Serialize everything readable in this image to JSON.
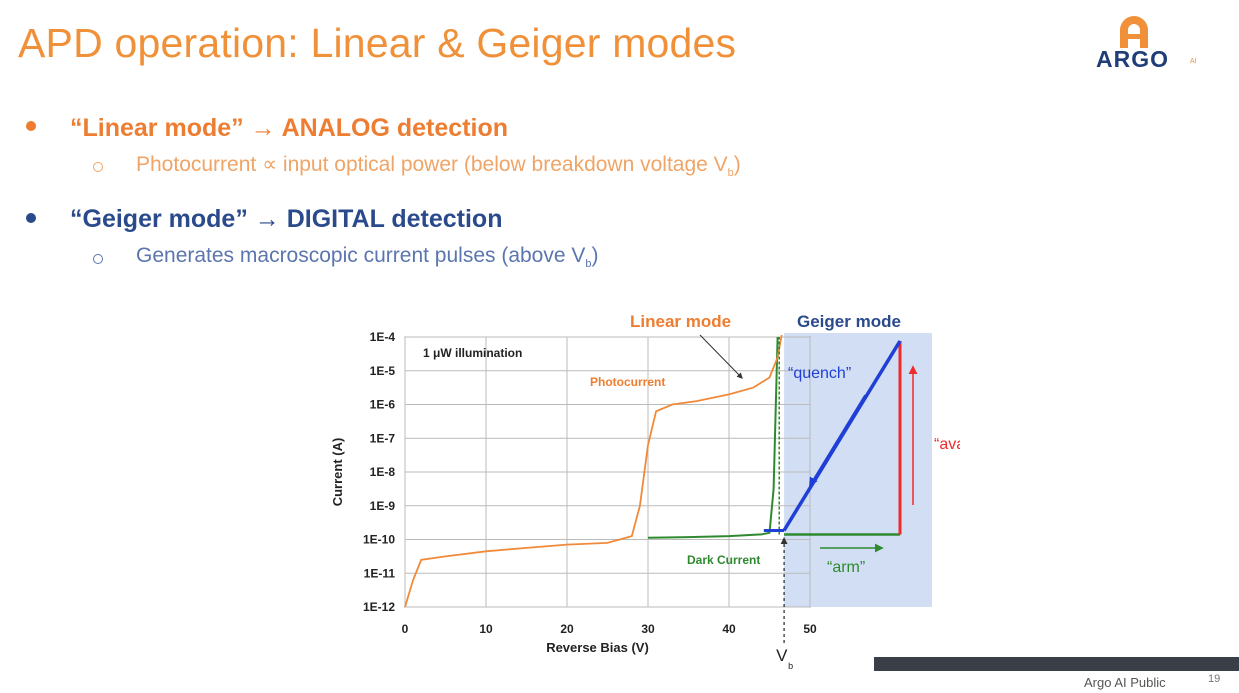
{
  "slide": {
    "title": "APD operation:  Linear & Geiger modes",
    "logo_text": "ARGO",
    "logo_sup": "AI",
    "bullet1": "“Linear mode” → ANALOG detection",
    "sub1_text": "Photocurrent ∝ input optical power (below breakdown voltage V",
    "sub1_sub": "b",
    "sub1_end": ")",
    "bullet2": "“Geiger mode” → DIGITAL detection",
    "sub2_text": "Generates macroscopic current pulses (above V",
    "sub2_sub": "b",
    "sub2_end": ")",
    "footer": "Argo AI Public",
    "page_number": "19"
  },
  "colors": {
    "accent_orange": "#ed7d31",
    "accent_blue": "#2a4a8c",
    "geiger_region": "#c9d8f1",
    "geiger_line": "#1f3fd6",
    "avalanche": "#f02a2a",
    "dark_current": "#2f8a2f",
    "photocurrent": "#f08a3a"
  },
  "chart_data": {
    "type": "line",
    "ylabel": "Current (A)",
    "xlabel": "Reverse Bias (V)",
    "x_ticks": [
      0,
      10,
      20,
      30,
      40,
      50
    ],
    "y_ticks": [
      "1E-12",
      "1E-11",
      "1E-10",
      "1E-9",
      "1E-8",
      "1E-7",
      "1E-6",
      "1E-5",
      "1E-4"
    ],
    "xlim": [
      0,
      50
    ],
    "ylim_log10": [
      -12,
      -4
    ],
    "y_scale": "log",
    "grid": true,
    "inset_label": "1 μW illumination",
    "series": [
      {
        "name": "Photocurrent",
        "x": [
          0,
          1,
          1.5,
          2,
          5,
          10,
          15,
          20,
          25,
          28,
          29,
          30,
          31,
          33,
          36,
          40,
          43,
          45,
          46,
          46.5
        ],
        "log10_y": [
          -12,
          -11.2,
          -10.9,
          -10.6,
          -10.5,
          -10.35,
          -10.25,
          -10.15,
          -10.1,
          -9.9,
          -9,
          -7.2,
          -6.2,
          -6,
          -5.9,
          -5.7,
          -5.5,
          -5.2,
          -4.6,
          -3.9
        ]
      },
      {
        "name": "Dark Current",
        "x": [
          30,
          35,
          40,
          44,
          45,
          45.5,
          46
        ],
        "log10_y": [
          -9.95,
          -9.93,
          -9.9,
          -9.85,
          -9.8,
          -8.5,
          -4.0
        ]
      }
    ],
    "vb_label": "V",
    "vb_sub": "b",
    "annotations": {
      "linear_mode": "Linear mode",
      "geiger_mode": "Geiger mode",
      "photocurrent": "Photocurrent",
      "dark_current": "Dark Current",
      "quench": "“quench”",
      "avalanche": "“avalanche”",
      "arm": "“arm”"
    }
  }
}
